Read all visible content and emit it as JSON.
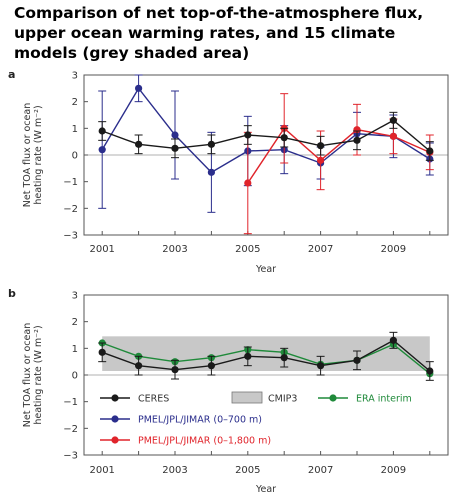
{
  "title": "Comparison of net top-of-the-atmosphere flux, upper ocean warming rates, and 15 climate models (grey shaded area)",
  "colors": {
    "ceres": "#1a1a1a",
    "pmel700": "#2b2e8c",
    "pmel1800": "#e0242b",
    "era": "#1f8a3a",
    "cmip": "#c8c8c8",
    "zero": "#999999"
  },
  "chart_data": [
    {
      "panel": "a",
      "type": "line",
      "xlabel": "Year",
      "ylabel_line1": "Net TOA flux or ocean",
      "ylabel_line2": "heating rate (W m⁻²)",
      "xlim": [
        2000.5,
        2010.5
      ],
      "ylim": [
        -3,
        3
      ],
      "xticks": [
        2001,
        2003,
        2005,
        2007,
        2009
      ],
      "yticks": [
        -3,
        -2,
        -1,
        0,
        1,
        2,
        3
      ],
      "series": [
        {
          "key": "pmel700",
          "color": "#2b2e8c",
          "x": [
            2001,
            2002,
            2003,
            2004,
            2005,
            2006,
            2007,
            2008,
            2009,
            2010
          ],
          "y": [
            0.2,
            2.5,
            0.75,
            -0.65,
            0.15,
            0.2,
            -0.3,
            0.8,
            0.7,
            -0.15
          ],
          "err": [
            2.2,
            0.5,
            1.65,
            1.5,
            1.3,
            0.9,
            0.6,
            0.8,
            0.8,
            0.6
          ]
        },
        {
          "key": "pmel1800",
          "color": "#e0242b",
          "x": [
            2005,
            2006,
            2007,
            2008,
            2009,
            2010
          ],
          "y": [
            -1.05,
            1.0,
            -0.2,
            0.95,
            0.7,
            0.1
          ],
          "err": [
            1.9,
            1.3,
            1.1,
            0.95,
            0.65,
            0.65
          ]
        },
        {
          "key": "ceres",
          "color": "#1a1a1a",
          "x": [
            2001,
            2002,
            2003,
            2004,
            2005,
            2006,
            2007,
            2008,
            2009,
            2010
          ],
          "y": [
            0.9,
            0.4,
            0.25,
            0.4,
            0.75,
            0.65,
            0.35,
            0.55,
            1.3,
            0.15
          ],
          "err": [
            0.35,
            0.35,
            0.35,
            0.35,
            0.35,
            0.35,
            0.35,
            0.35,
            0.3,
            0.35
          ]
        }
      ]
    },
    {
      "panel": "b",
      "type": "line",
      "xlabel": "Year",
      "ylabel_line1": "Net TOA flux or ocean",
      "ylabel_line2": "heating rate (W m⁻²)",
      "xlim": [
        2000.5,
        2010.5
      ],
      "ylim": [
        -3,
        3
      ],
      "xticks": [
        2001,
        2003,
        2005,
        2007,
        2009
      ],
      "yticks": [
        -3,
        -2,
        -1,
        0,
        1,
        2,
        3
      ],
      "band": {
        "x": [
          2001,
          2010
        ],
        "y": [
          0.15,
          1.45
        ]
      },
      "series": [
        {
          "key": "era",
          "color": "#1f8a3a",
          "x": [
            2001,
            2002,
            2003,
            2004,
            2005,
            2006,
            2007,
            2008,
            2009,
            2010
          ],
          "y": [
            1.2,
            0.7,
            0.5,
            0.65,
            0.95,
            0.85,
            0.4,
            0.55,
            1.15,
            0.05
          ],
          "err": [
            0,
            0,
            0,
            0,
            0,
            0,
            0,
            0,
            0,
            0
          ]
        },
        {
          "key": "ceres",
          "color": "#1a1a1a",
          "x": [
            2001,
            2002,
            2003,
            2004,
            2005,
            2006,
            2007,
            2008,
            2009,
            2010
          ],
          "y": [
            0.85,
            0.35,
            0.2,
            0.35,
            0.7,
            0.65,
            0.35,
            0.55,
            1.3,
            0.15
          ],
          "err": [
            0.35,
            0.35,
            0.35,
            0.35,
            0.35,
            0.35,
            0.35,
            0.35,
            0.3,
            0.35
          ]
        }
      ],
      "legend": [
        {
          "key": "ceres",
          "label": "CERES",
          "color": "#1a1a1a",
          "kind": "marker"
        },
        {
          "key": "cmip",
          "label": "CMIP3",
          "color": "#c8c8c8",
          "kind": "box"
        },
        {
          "key": "era",
          "label": "ERA interim",
          "color": "#1f8a3a",
          "kind": "marker"
        },
        {
          "key": "pmel700",
          "label": "PMEL/JPL/JIMAR (0–700 m)",
          "color": "#2b2e8c",
          "kind": "marker"
        },
        {
          "key": "pmel1800",
          "label": "PMEL/JPL/JIMAR (0–1,800 m)",
          "color": "#e0242b",
          "kind": "marker"
        }
      ]
    }
  ]
}
